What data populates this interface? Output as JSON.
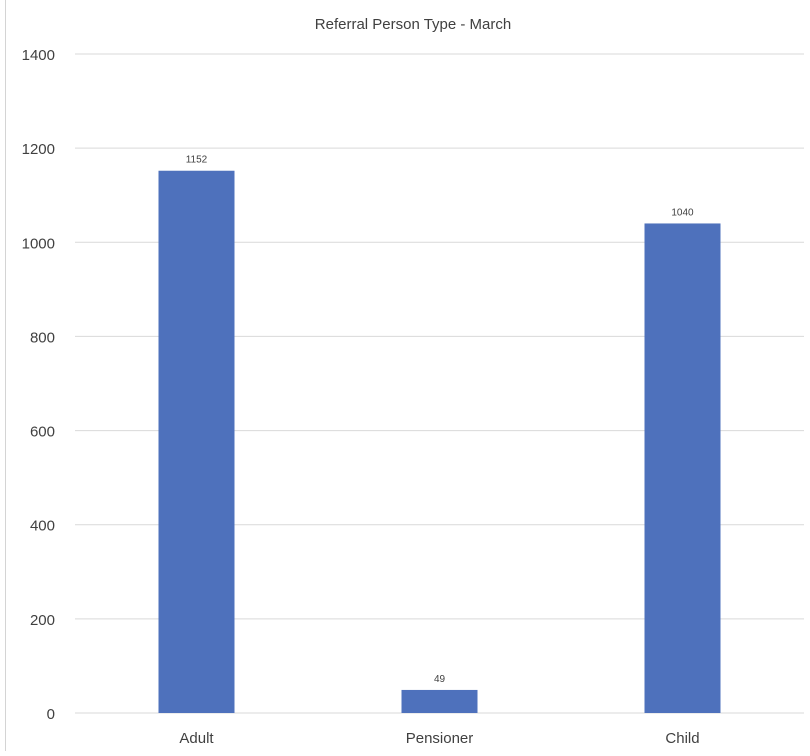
{
  "chart_data": {
    "type": "bar",
    "title": "Referral Person Type - March",
    "categories": [
      "Adult",
      "Pensioner",
      "Child"
    ],
    "values": [
      1152,
      49,
      1040
    ],
    "data_labels": [
      "1152",
      "49",
      "1040"
    ],
    "ylim": [
      0,
      1400
    ],
    "y_ticks": [
      0,
      200,
      400,
      600,
      800,
      1000,
      1200,
      1400
    ],
    "grid": true,
    "legend": "none",
    "colors": {
      "bar": "#4e71bc",
      "grid": "#d9d9d9",
      "text": "#404040"
    }
  }
}
